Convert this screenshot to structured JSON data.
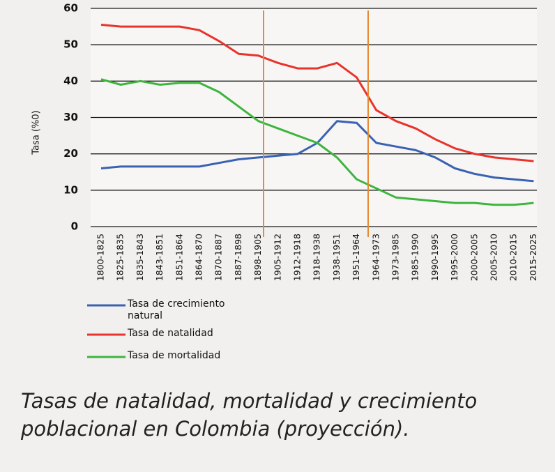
{
  "chart_data": {
    "type": "line",
    "title": "Tasas de natalidad, mortalidad y crecimiento poblacional en Colombia (proyección).",
    "y_label": "Tasa (%0)",
    "categories": [
      "1800-1825",
      "1825-1835",
      "1835-1843",
      "1843-1851",
      "1851-1864",
      "1864-1870",
      "1870-1887",
      "1887-1898",
      "1898-1905",
      "1905-1912",
      "1912-1918",
      "1918-1938",
      "1938-1951",
      "1951-1964",
      "1964-1973",
      "1973-1985",
      "1985-1990",
      "1990-1995",
      "1995-2000",
      "2000-2005",
      "2005-2010",
      "2010-2015",
      "2015-2025"
    ],
    "series": [
      {
        "name": "Tasa de crecimiento natural",
        "color": "#3a62b2",
        "values": [
          16,
          16.5,
          16.5,
          16.5,
          16.5,
          16.5,
          17.5,
          18.5,
          19,
          19.5,
          20,
          23,
          29,
          28.5,
          23,
          22,
          21,
          19,
          16,
          14.5,
          13.5,
          13,
          12.5
        ]
      },
      {
        "name": "Tasa de natalidad",
        "color": "#e8332b",
        "values": [
          55.5,
          55,
          55,
          55,
          55,
          54,
          51,
          47.5,
          47,
          45,
          43.5,
          43.5,
          45,
          41,
          32,
          29,
          27,
          24,
          21.5,
          20,
          19,
          18.5,
          18
        ]
      },
      {
        "name": "Tasa de mortalidad",
        "color": "#3db53d",
        "values": [
          40.5,
          39,
          40,
          39,
          39.5,
          39.5,
          37,
          33,
          29,
          27,
          25,
          23,
          19,
          13,
          10.5,
          8,
          7.5,
          7,
          6.5,
          6.5,
          6,
          6,
          6.5
        ]
      }
    ],
    "ylim": [
      0,
      60
    ],
    "yticks": [
      0,
      10,
      20,
      30,
      40,
      50,
      60
    ],
    "grid": true
  }
}
